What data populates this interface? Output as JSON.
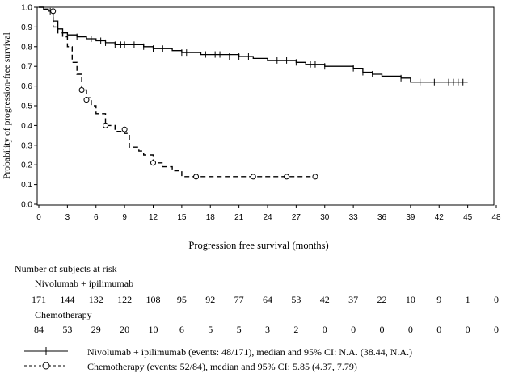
{
  "chart_data": {
    "type": "line",
    "subtype": "kaplan-meier",
    "title": "",
    "xlabel": "Progression free survival (months)",
    "ylabel": "Probability of progression-free survival",
    "xlim": [
      0,
      48
    ],
    "ylim": [
      0,
      1.0
    ],
    "x_ticks": [
      "0",
      "3",
      "6",
      "9",
      "12",
      "15",
      "18",
      "21",
      "24",
      "27",
      "30",
      "33",
      "36",
      "39",
      "42",
      "45",
      "48"
    ],
    "y_ticks": [
      "0.0",
      "0.1",
      "0.2",
      "0.3",
      "0.4",
      "0.5",
      "0.6",
      "0.7",
      "0.8",
      "0.9",
      "1.0"
    ],
    "grid": false,
    "series": [
      {
        "name": "Nivolumab + ipilimumab",
        "style": "solid",
        "censor_marker": "plus",
        "steps": [
          [
            0,
            1.0
          ],
          [
            0.5,
            0.99
          ],
          [
            1,
            0.98
          ],
          [
            1.5,
            0.93
          ],
          [
            2,
            0.89
          ],
          [
            2.5,
            0.87
          ],
          [
            3,
            0.86
          ],
          [
            4,
            0.85
          ],
          [
            5,
            0.84
          ],
          [
            6,
            0.83
          ],
          [
            7,
            0.82
          ],
          [
            8,
            0.81
          ],
          [
            10,
            0.81
          ],
          [
            11,
            0.8
          ],
          [
            12,
            0.79
          ],
          [
            14,
            0.78
          ],
          [
            15,
            0.77
          ],
          [
            17,
            0.76
          ],
          [
            21,
            0.75
          ],
          [
            22.5,
            0.74
          ],
          [
            24,
            0.73
          ],
          [
            27,
            0.72
          ],
          [
            28,
            0.71
          ],
          [
            30,
            0.7
          ],
          [
            33,
            0.69
          ],
          [
            34,
            0.67
          ],
          [
            35,
            0.66
          ],
          [
            36,
            0.65
          ],
          [
            38,
            0.64
          ],
          [
            39,
            0.62
          ],
          [
            45,
            0.62
          ]
        ],
        "censored": [
          [
            1.2,
            0.98
          ],
          [
            4,
            0.85
          ],
          [
            5.5,
            0.84
          ],
          [
            6.5,
            0.83
          ],
          [
            7,
            0.82
          ],
          [
            8,
            0.81
          ],
          [
            8.6,
            0.81
          ],
          [
            9,
            0.81
          ],
          [
            10,
            0.81
          ],
          [
            11,
            0.8
          ],
          [
            12,
            0.79
          ],
          [
            13,
            0.79
          ],
          [
            15,
            0.77
          ],
          [
            15.5,
            0.77
          ],
          [
            17.5,
            0.76
          ],
          [
            18.5,
            0.76
          ],
          [
            19,
            0.76
          ],
          [
            20,
            0.75
          ],
          [
            21,
            0.75
          ],
          [
            22,
            0.75
          ],
          [
            25,
            0.73
          ],
          [
            26,
            0.73
          ],
          [
            27,
            0.72
          ],
          [
            28.5,
            0.71
          ],
          [
            29,
            0.71
          ],
          [
            30,
            0.7
          ],
          [
            33,
            0.69
          ],
          [
            34,
            0.67
          ],
          [
            35,
            0.66
          ],
          [
            38,
            0.64
          ],
          [
            40,
            0.62
          ],
          [
            41.5,
            0.62
          ],
          [
            43,
            0.62
          ],
          [
            43.5,
            0.62
          ],
          [
            44,
            0.62
          ],
          [
            44.5,
            0.62
          ]
        ]
      },
      {
        "name": "Chemotherapy",
        "style": "dashed",
        "censor_marker": "circle",
        "steps": [
          [
            0,
            1.0
          ],
          [
            0.5,
            0.99
          ],
          [
            1,
            0.98
          ],
          [
            1.5,
            0.9
          ],
          [
            2,
            0.87
          ],
          [
            2.5,
            0.85
          ],
          [
            3,
            0.8
          ],
          [
            3.5,
            0.72
          ],
          [
            4,
            0.66
          ],
          [
            4.5,
            0.58
          ],
          [
            5,
            0.54
          ],
          [
            5.5,
            0.5
          ],
          [
            6,
            0.46
          ],
          [
            7,
            0.4
          ],
          [
            8,
            0.37
          ],
          [
            9,
            0.36
          ],
          [
            9.5,
            0.29
          ],
          [
            10.5,
            0.27
          ],
          [
            11,
            0.25
          ],
          [
            12,
            0.21
          ],
          [
            13,
            0.19
          ],
          [
            14,
            0.17
          ],
          [
            15,
            0.14
          ],
          [
            29,
            0.14
          ]
        ],
        "censored": [
          [
            1.5,
            0.98
          ],
          [
            4.5,
            0.58
          ],
          [
            5,
            0.53
          ],
          [
            7,
            0.4
          ],
          [
            9,
            0.38
          ],
          [
            12,
            0.21
          ],
          [
            16.5,
            0.14
          ],
          [
            22.5,
            0.14
          ],
          [
            26,
            0.14
          ],
          [
            29,
            0.14
          ]
        ]
      }
    ]
  },
  "risk_table": {
    "title": "Number of subjects at risk",
    "groups": [
      {
        "name": "Nivolumab + ipilimumab",
        "values": [
          "171",
          "144",
          "132",
          "122",
          "108",
          "95",
          "92",
          "77",
          "64",
          "53",
          "42",
          "37",
          "22",
          "10",
          "9",
          "1",
          "0"
        ]
      },
      {
        "name": "Chemotherapy",
        "values": [
          "84",
          "53",
          "29",
          "20",
          "10",
          "6",
          "5",
          "5",
          "3",
          "2",
          "0",
          "0",
          "0",
          "0",
          "0",
          "0",
          "0"
        ]
      }
    ]
  },
  "legend": [
    {
      "text": "Nivolumab + ipilimumab (events: 48/171), median and 95% CI: N.A. (38.44, N.A.)"
    },
    {
      "text": "Chemotherapy (events: 52/84), median and 95% CI: 5.85 (4.37, 7.79)"
    }
  ]
}
